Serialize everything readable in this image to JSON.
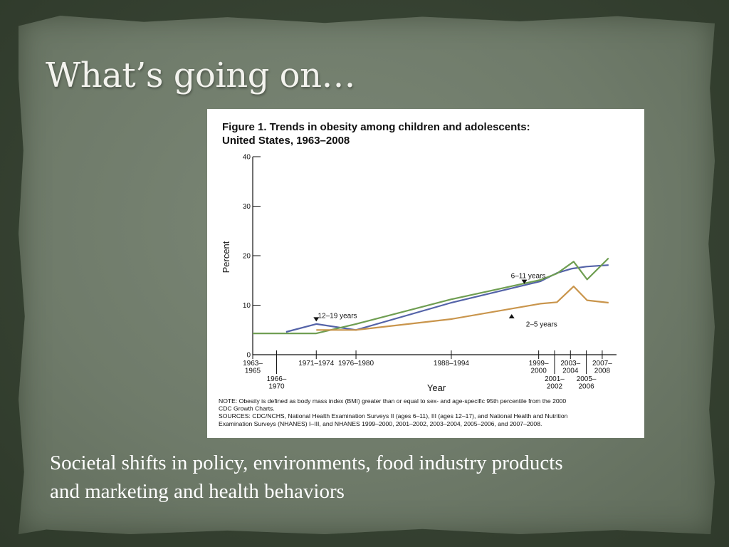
{
  "slide": {
    "title": "What’s going on…",
    "caption_line1": "Societal shifts in policy, environments, food industry products",
    "caption_line2": "and marketing and health behaviors"
  },
  "chart_data": {
    "type": "line",
    "title_line1": "Figure 1. Trends in obesity among children and adolescents:",
    "title_line2": "United States, 1963–2008",
    "ylabel": "Percent",
    "xlabel": "Year",
    "ylim": [
      0,
      40
    ],
    "yticks": [
      0,
      10,
      20,
      30,
      40
    ],
    "xlim": [
      1963,
      2008.8
    ],
    "xtick_positions": [
      1963,
      1966,
      1971,
      1976,
      1988,
      1999,
      2001,
      2003,
      2005,
      2007
    ],
    "xtick_labels": [
      {
        "x": 1963,
        "lines": [
          "1963–",
          "1965"
        ],
        "row": "top"
      },
      {
        "x": 1966,
        "lines": [
          "1966–",
          "1970"
        ],
        "row": "bottom"
      },
      {
        "x": 1971,
        "lines": [
          "1971–1974"
        ],
        "row": "top"
      },
      {
        "x": 1976,
        "lines": [
          "1976–1980"
        ],
        "row": "top"
      },
      {
        "x": 1988,
        "lines": [
          "1988–1994"
        ],
        "row": "top"
      },
      {
        "x": 1999,
        "lines": [
          "1999–",
          "2000"
        ],
        "row": "top"
      },
      {
        "x": 2001,
        "lines": [
          "2001–",
          "2002"
        ],
        "row": "bottom"
      },
      {
        "x": 2003,
        "lines": [
          "2003–",
          "2004"
        ],
        "row": "top"
      },
      {
        "x": 2005,
        "lines": [
          "2005–",
          "2006"
        ],
        "row": "bottom"
      },
      {
        "x": 2007,
        "lines": [
          "2007–",
          "2008"
        ],
        "row": "top"
      }
    ],
    "series": [
      {
        "name": "6–11 years",
        "color": "#5463a8",
        "points": [
          [
            1967.2,
            4.6
          ],
          [
            1971,
            6.2
          ],
          [
            1976,
            5.0
          ],
          [
            1988,
            10.5
          ],
          [
            1999.2,
            14.8
          ],
          [
            2001.3,
            16.5
          ],
          [
            2003.2,
            17.4
          ],
          [
            2005,
            17.8
          ],
          [
            2007.8,
            18.1
          ]
        ]
      },
      {
        "name": "12–19 years",
        "color": "#6f9e52",
        "points": [
          [
            1963,
            4.3
          ],
          [
            1971,
            4.3
          ],
          [
            1976,
            6.2
          ],
          [
            1988,
            11.2
          ],
          [
            1999.2,
            15.1
          ],
          [
            2001.3,
            16.4
          ],
          [
            2003.4,
            18.8
          ],
          [
            2005.1,
            15.2
          ],
          [
            2007.8,
            19.5
          ]
        ]
      },
      {
        "name": "2–5 years",
        "color": "#c9954c",
        "points": [
          [
            1971,
            5.0
          ],
          [
            1976,
            5.0
          ],
          [
            1988,
            7.2
          ],
          [
            1999.2,
            10.3
          ],
          [
            2001.3,
            10.6
          ],
          [
            2003.4,
            13.8
          ],
          [
            2005.1,
            11.0
          ],
          [
            2007.8,
            10.5
          ]
        ]
      }
    ],
    "annotations": [
      {
        "text": "6–11 years",
        "x": 1995.5,
        "y": 15.5,
        "arrow": "down",
        "arrow_x": 1997.2,
        "arrow_y": 14.3
      },
      {
        "text": "12–19 years",
        "x": 1971.2,
        "y": 7.4,
        "arrow": "down",
        "arrow_x": 1971,
        "arrow_y": 6.7
      },
      {
        "text": "2–5 years",
        "x": 1997.4,
        "y": 5.7,
        "arrow": "up",
        "arrow_x": 1995.6,
        "arrow_y": 8.2
      }
    ],
    "note_lines": [
      "NOTE: Obesity is defined as body mass index (BMI) greater than or equal to sex- and age-specific 95th percentile from the 2000",
      "CDC Growth Charts.",
      "SOURCES: CDC/NCHS, National Health Examination Surveys II (ages 6–11), III (ages 12–17), and National Health and Nutrition",
      "Examination Surveys (NHANES) I–III, and NHANES 1999–2000, 2001–2002, 2003–2004, 2005–2006, and 2007–2008."
    ]
  }
}
